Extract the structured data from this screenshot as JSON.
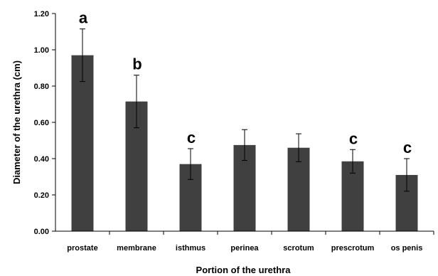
{
  "chart_data": {
    "type": "bar",
    "xlabel": "Portion of the urethra",
    "ylabel": "Diameter of  the urethra (cm)",
    "ylim": [
      0,
      1.2
    ],
    "yticks": [
      "0.00",
      "0.20",
      "0.40",
      "0.60",
      "0.80",
      "1.00",
      "1.20"
    ],
    "categories": [
      "prostate",
      "membrane",
      "isthmus",
      "perinea",
      "scrotum",
      "prescrotum",
      "os penis"
    ],
    "values": [
      0.97,
      0.715,
      0.37,
      0.475,
      0.46,
      0.385,
      0.31
    ],
    "errors": [
      0.145,
      0.145,
      0.085,
      0.085,
      0.077,
      0.065,
      0.09
    ],
    "significance_letters": [
      "a",
      "b",
      "c",
      "",
      "",
      "c",
      "c"
    ],
    "bar_color": "#404040",
    "grid": false,
    "legend": "none"
  }
}
